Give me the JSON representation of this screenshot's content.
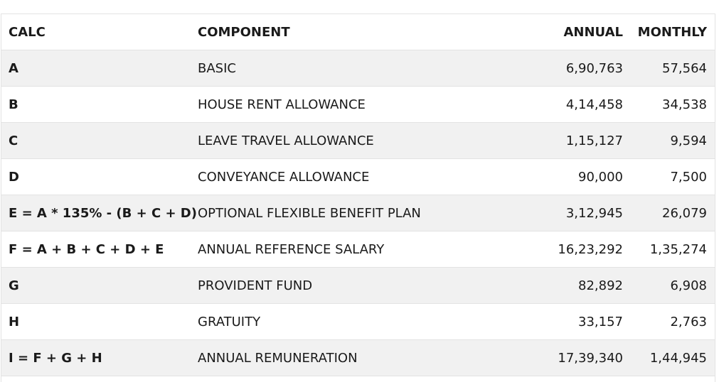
{
  "table": {
    "headers": {
      "calc": "CALC",
      "component": "COMPONENT",
      "annual": "ANNUAL",
      "monthly": "MONTHLY"
    },
    "rows": [
      {
        "calc": "A",
        "component": "BASIC",
        "annual": "6,90,763",
        "monthly": "57,564"
      },
      {
        "calc": "B",
        "component": "HOUSE RENT ALLOWANCE",
        "annual": "4,14,458",
        "monthly": "34,538"
      },
      {
        "calc": "C",
        "component": "LEAVE TRAVEL ALLOWANCE",
        "annual": "1,15,127",
        "monthly": "9,594"
      },
      {
        "calc": "D",
        "component": "CONVEYANCE ALLOWANCE",
        "annual": "90,000",
        "monthly": "7,500"
      },
      {
        "calc": "E = A * 135% - (B + C + D)",
        "component": "OPTIONAL FLEXIBLE BENEFIT PLAN",
        "annual": "3,12,945",
        "monthly": "26,079"
      },
      {
        "calc": "F = A + B + C + D + E",
        "component": "ANNUAL REFERENCE SALARY",
        "annual": "16,23,292",
        "monthly": "1,35,274"
      },
      {
        "calc": "G",
        "component": "PROVIDENT FUND",
        "annual": "82,892",
        "monthly": "6,908"
      },
      {
        "calc": "H",
        "component": "GRATUITY",
        "annual": "33,157",
        "monthly": "2,763"
      },
      {
        "calc": "I = F + G + H",
        "component": "ANNUAL REMUNERATION",
        "annual": "17,39,340",
        "monthly": "1,44,945"
      }
    ]
  }
}
